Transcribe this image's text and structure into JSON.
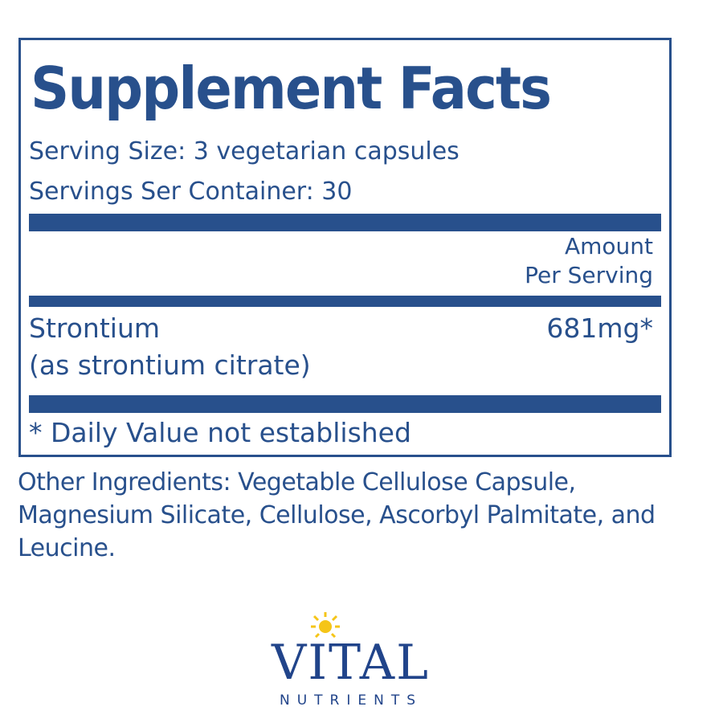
{
  "panel": {
    "title": "Supplement Facts",
    "serving_size": "Serving Size: 3 vegetarian capsules",
    "servings_per_container": "Servings Ser Container: 30",
    "amount_header_line1": "Amount",
    "amount_header_line2": "Per Serving",
    "ingredient_name": "Strontium",
    "ingredient_form": "(as strontium citrate)",
    "ingredient_amount": "681mg*",
    "footnote": "* Daily Value not established"
  },
  "other_ingredients": "Other Ingredients: Vegetable Cellulose Capsule, Magnesium Silicate, Cellulose, Ascorbyl Palmitate, and Leucine.",
  "logo": {
    "name": "VITAL",
    "subtitle": "NUTRIENTS",
    "brand_color": "#21448a",
    "sun_color": "#f5c518"
  },
  "colors": {
    "text": "#28508c"
  }
}
